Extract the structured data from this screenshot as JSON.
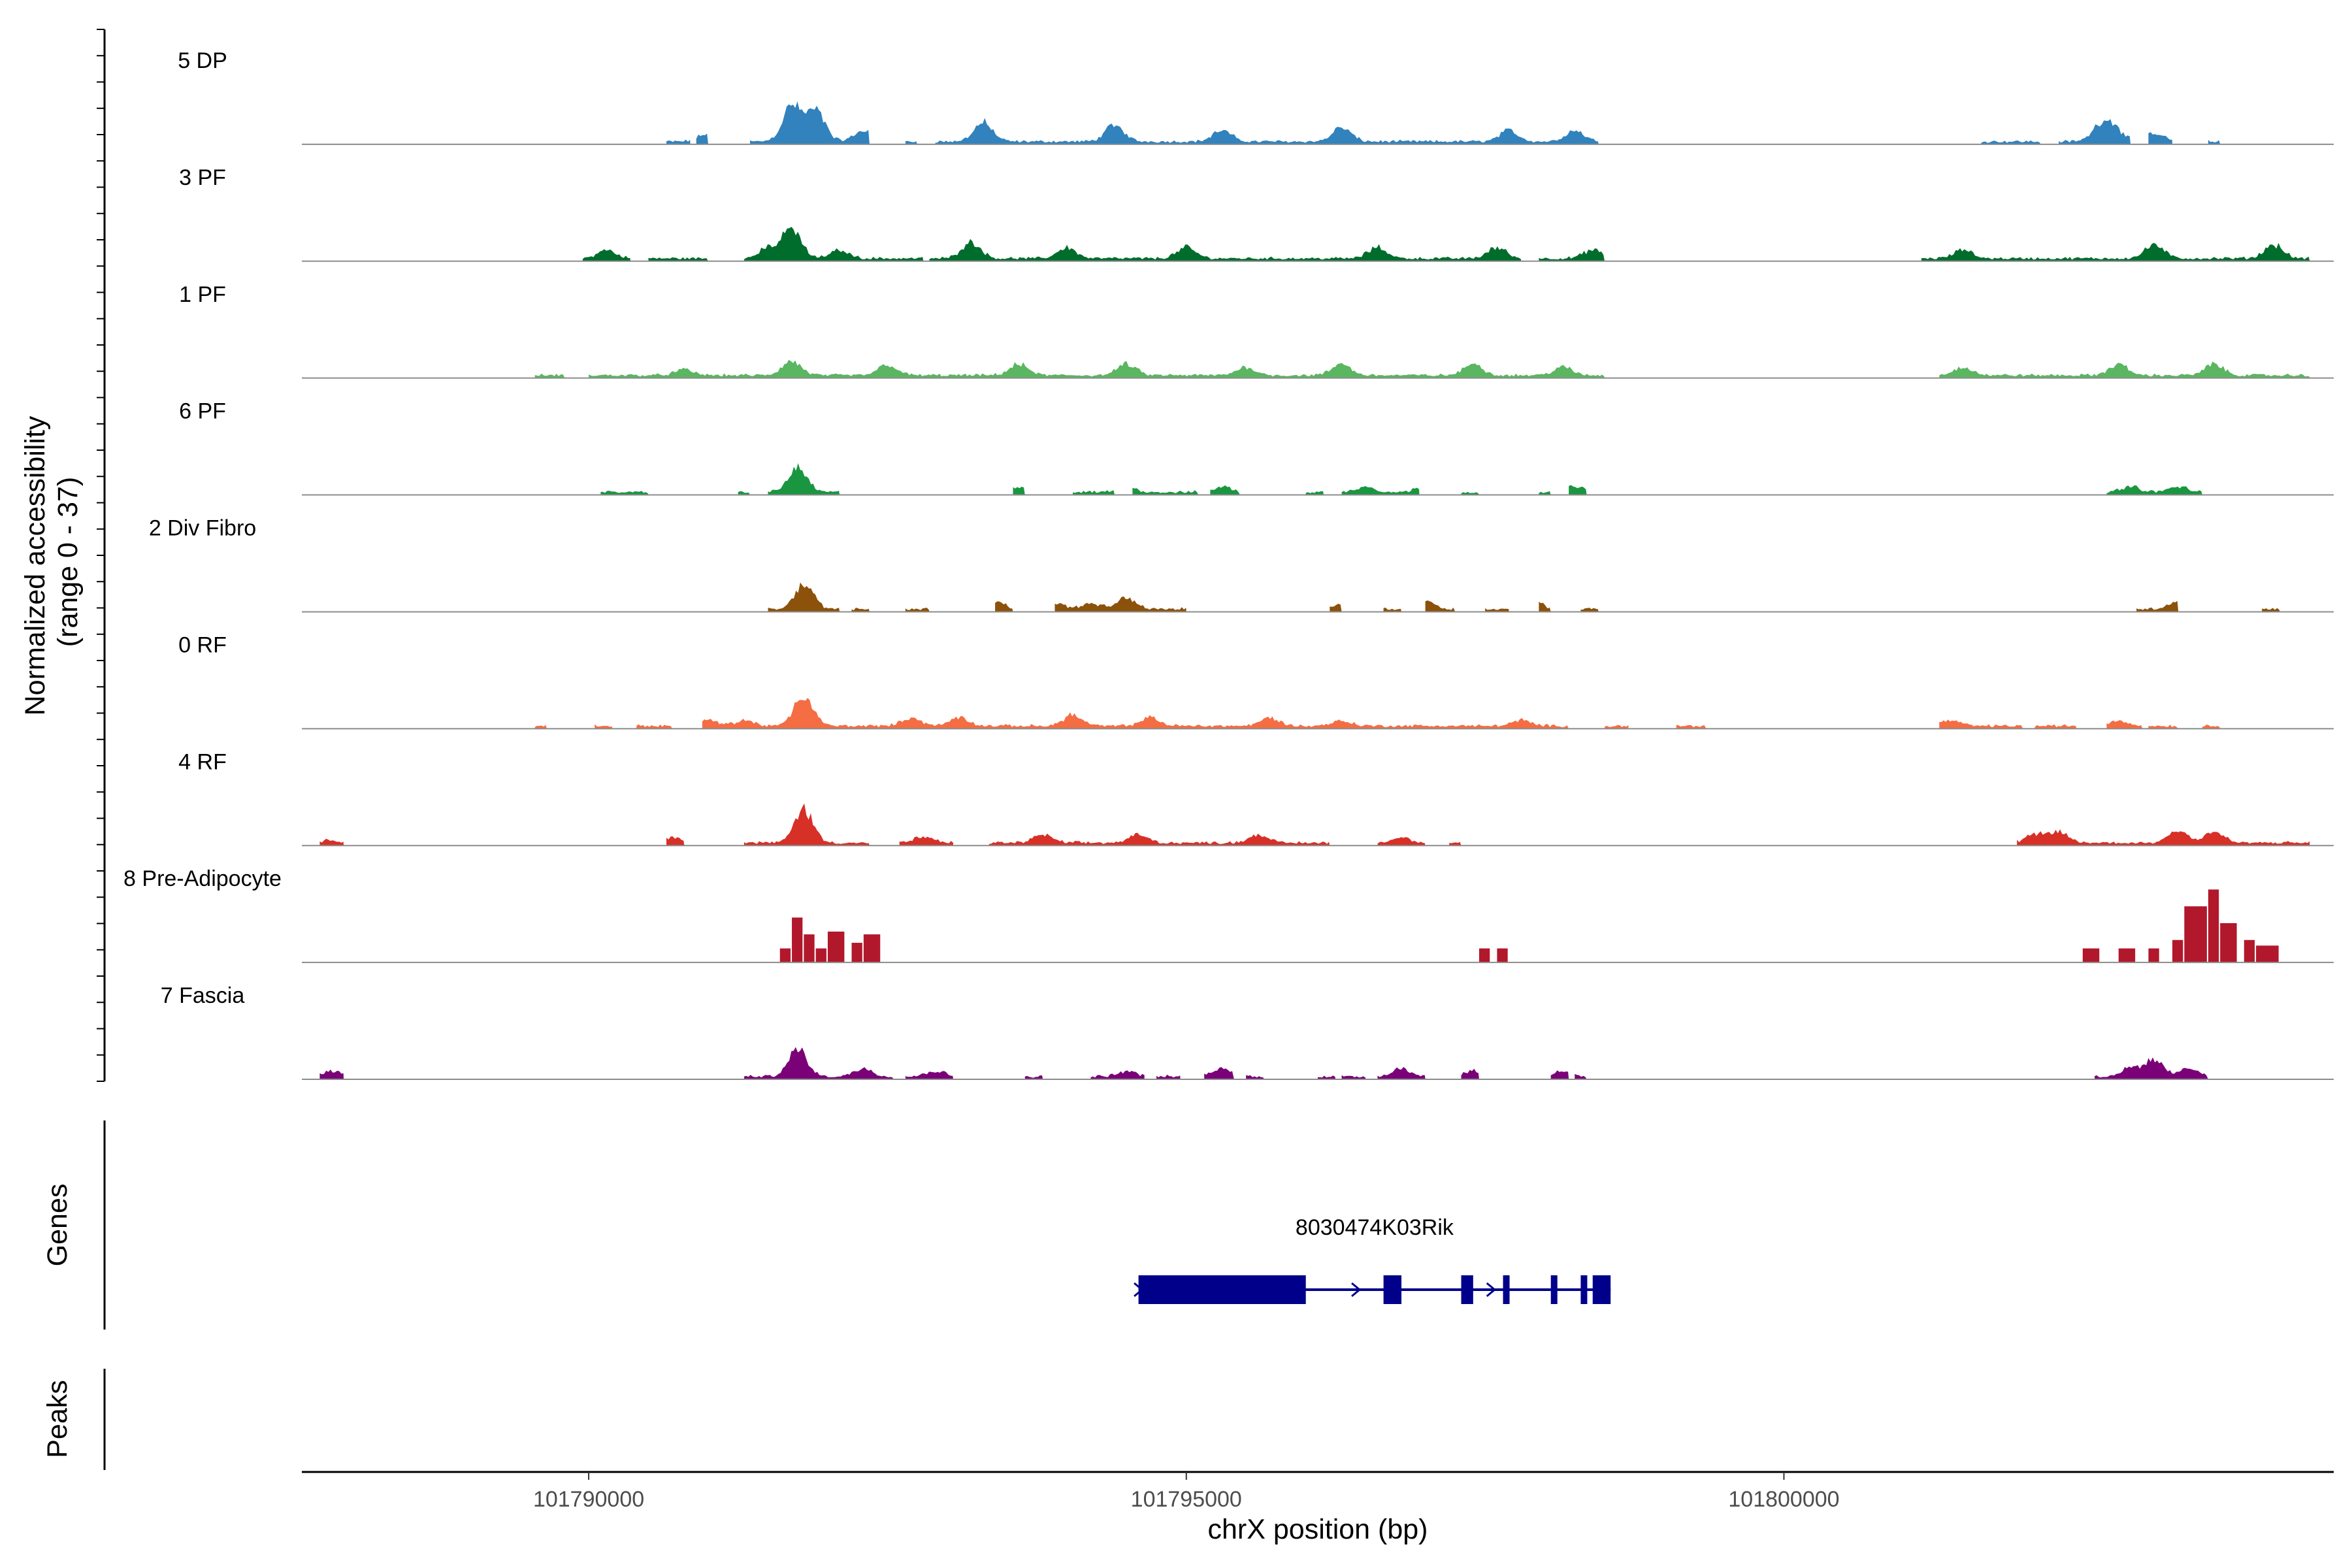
{
  "chart_data": {
    "type": "area",
    "title": "",
    "xlabel": "chrX position (bp)",
    "ylabel": "Normalized accessibility\n(range 0 - 37)",
    "xlim": [
      101787600,
      101804600
    ],
    "ylim": [
      0,
      37
    ],
    "x_ticks": [
      101790000,
      101795000,
      101800000
    ],
    "x_tick_labels": [
      "101790000",
      "101795000",
      "101800000"
    ],
    "track_labels": {
      "genes": "Genes",
      "peaks": "Peaks"
    },
    "series": [
      {
        "name": "5 DP",
        "color": "#3182bd",
        "segments": [
          [
            101790650,
            101790850
          ],
          [
            101790900,
            101791000
          ],
          [
            101791350,
            101792350
          ],
          [
            101792650,
            101792750
          ],
          [
            101792900,
            101798450
          ],
          [
            101801650,
            101802150
          ],
          [
            101802300,
            101802900
          ],
          [
            101803050,
            101803250
          ],
          [
            101803550,
            101803650
          ]
        ],
        "peaks": [
          [
            101791000,
            3
          ],
          [
            101791700,
            13
          ],
          [
            101791900,
            11
          ],
          [
            101792300,
            4
          ],
          [
            101793300,
            7
          ],
          [
            101794400,
            6
          ],
          [
            101795300,
            4
          ],
          [
            101796300,
            5
          ],
          [
            101797700,
            4
          ],
          [
            101798250,
            4
          ],
          [
            101802650,
            5
          ],
          [
            101802750,
            5
          ],
          [
            101803100,
            3
          ]
        ]
      },
      {
        "name": "3 PF",
        "color": "#006d2c",
        "segments": [
          [
            101789950,
            101790350
          ],
          [
            101790500,
            101791000
          ],
          [
            101791300,
            101792800
          ],
          [
            101792850,
            101797800
          ],
          [
            101797950,
            101798500
          ],
          [
            101801150,
            101804400
          ]
        ],
        "peaks": [
          [
            101790150,
            3
          ],
          [
            101791500,
            4
          ],
          [
            101791700,
            11
          ],
          [
            101792100,
            3
          ],
          [
            101793200,
            6
          ],
          [
            101794000,
            4
          ],
          [
            101795000,
            4
          ],
          [
            101796600,
            4
          ],
          [
            101797600,
            4
          ],
          [
            101798400,
            3
          ],
          [
            101801500,
            3
          ],
          [
            101803100,
            5
          ],
          [
            101804100,
            5
          ]
        ]
      },
      {
        "name": "1 PF",
        "color": "#5ab660",
        "segments": [
          [
            101789550,
            101789800
          ],
          [
            101790000,
            101798500
          ],
          [
            101801300,
            101804400
          ]
        ],
        "peaks": [
          [
            101790800,
            2
          ],
          [
            101791700,
            5
          ],
          [
            101792500,
            4
          ],
          [
            101793600,
            4
          ],
          [
            101794500,
            4
          ],
          [
            101795500,
            3
          ],
          [
            101796300,
            4
          ],
          [
            101797400,
            4
          ],
          [
            101798150,
            3
          ],
          [
            101801500,
            3
          ],
          [
            101802800,
            4
          ],
          [
            101803600,
            4
          ]
        ]
      },
      {
        "name": "6 PF",
        "color": "#1a9641",
        "segments": [
          [
            101790100,
            101790500
          ],
          [
            101791250,
            101791350
          ],
          [
            101791500,
            101792100
          ],
          [
            101793550,
            101793650
          ],
          [
            101794050,
            101794400
          ],
          [
            101794550,
            101795100
          ],
          [
            101795200,
            101795450
          ],
          [
            101796000,
            101796150
          ],
          [
            101796300,
            101796950
          ],
          [
            101797300,
            101797450
          ],
          [
            101797950,
            101798050
          ],
          [
            101798200,
            101798350
          ],
          [
            101802700,
            101803500
          ]
        ],
        "peaks": [
          [
            101791750,
            9
          ],
          [
            101793600,
            2
          ],
          [
            101794500,
            2
          ],
          [
            101795300,
            2
          ],
          [
            101796500,
            2
          ],
          [
            101797000,
            2
          ],
          [
            101798250,
            2
          ],
          [
            101802900,
            2
          ],
          [
            101803300,
            2
          ]
        ]
      },
      {
        "name": "2 Div Fibro",
        "color": "#8c510a",
        "segments": [
          [
            101791500,
            101792100
          ],
          [
            101792200,
            101792350
          ],
          [
            101792650,
            101792850
          ],
          [
            101793400,
            101793550
          ],
          [
            101793900,
            101795000
          ],
          [
            101796200,
            101796300
          ],
          [
            101796650,
            101796800
          ],
          [
            101797000,
            101797250
          ],
          [
            101797500,
            101797700
          ],
          [
            101797950,
            101798050
          ],
          [
            101798300,
            101798450
          ],
          [
            101802950,
            101803300
          ],
          [
            101804000,
            101804150
          ]
        ],
        "peaks": [
          [
            101791800,
            9
          ],
          [
            101793400,
            3
          ],
          [
            101793900,
            2
          ],
          [
            101794200,
            2
          ],
          [
            101794500,
            4
          ],
          [
            101796300,
            2
          ],
          [
            101797000,
            3
          ],
          [
            101797900,
            3
          ],
          [
            101802800,
            2
          ],
          [
            101803300,
            3
          ]
        ]
      },
      {
        "name": "0 RF",
        "color": "#f46d43",
        "segments": [
          [
            101789550,
            101789650
          ],
          [
            101790050,
            101790200
          ],
          [
            101790400,
            101790700
          ],
          [
            101790950,
            101798200
          ],
          [
            101798500,
            101798700
          ],
          [
            101799100,
            101799350
          ],
          [
            101801300,
            101802000
          ],
          [
            101802100,
            101802450
          ],
          [
            101802700,
            101803000
          ],
          [
            101803050,
            101803300
          ],
          [
            101803500,
            101803650
          ]
        ],
        "peaks": [
          [
            101791000,
            2
          ],
          [
            101791300,
            2
          ],
          [
            101791800,
            11
          ],
          [
            101792700,
            3
          ],
          [
            101793100,
            3
          ],
          [
            101794050,
            4
          ],
          [
            101794700,
            3
          ],
          [
            101795700,
            3
          ],
          [
            101796300,
            2
          ],
          [
            101797800,
            2
          ],
          [
            101801400,
            2
          ],
          [
            101802800,
            2
          ]
        ]
      },
      {
        "name": "4 RF",
        "color": "#d73027",
        "segments": [
          [
            101787750,
            101787950
          ],
          [
            101790650,
            101790800
          ],
          [
            101791300,
            101792350
          ],
          [
            101792600,
            101793050
          ],
          [
            101793350,
            101796200
          ],
          [
            101796600,
            101797000
          ],
          [
            101797200,
            101797300
          ],
          [
            101801950,
            101804400
          ]
        ],
        "peaks": [
          [
            101787850,
            1
          ],
          [
            101790700,
            2
          ],
          [
            101791800,
            12
          ],
          [
            101792800,
            2
          ],
          [
            101793800,
            3
          ],
          [
            101794600,
            3
          ],
          [
            101795600,
            3
          ],
          [
            101796800,
            2
          ],
          [
            101802100,
            3
          ],
          [
            101802300,
            4
          ],
          [
            101803300,
            5
          ],
          [
            101803600,
            4
          ]
        ]
      },
      {
        "name": "8 Pre-Adipocyte",
        "color": "#b2182b",
        "bars": [
          [
            101791600,
            101791700,
            5
          ],
          [
            101791700,
            101791800,
            16
          ],
          [
            101791800,
            101791900,
            10
          ],
          [
            101791900,
            101792000,
            5
          ],
          [
            101792000,
            101792150,
            11
          ],
          [
            101792200,
            101792300,
            7
          ],
          [
            101792300,
            101792450,
            10
          ],
          [
            101797450,
            101797550,
            5
          ],
          [
            101797600,
            101797700,
            5
          ],
          [
            101802500,
            101802650,
            5
          ],
          [
            101802800,
            101802950,
            5
          ],
          [
            101803050,
            101803150,
            5
          ],
          [
            101803250,
            101803350,
            8
          ],
          [
            101803350,
            101803550,
            20
          ],
          [
            101803550,
            101803650,
            26
          ],
          [
            101803650,
            101803800,
            14
          ],
          [
            101803850,
            101803950,
            8
          ],
          [
            101803950,
            101804150,
            6
          ]
        ]
      },
      {
        "name": "7 Fascia",
        "color": "#7a0177",
        "segments": [
          [
            101787750,
            101787950
          ],
          [
            101791300,
            101792550
          ],
          [
            101792650,
            101793050
          ],
          [
            101793650,
            101793800
          ],
          [
            101794200,
            101794650
          ],
          [
            101794750,
            101794950
          ],
          [
            101795150,
            101795400
          ],
          [
            101795500,
            101795650
          ],
          [
            101796100,
            101796250
          ],
          [
            101796300,
            101796500
          ],
          [
            101796600,
            101797000
          ],
          [
            101797300,
            101797450
          ],
          [
            101798050,
            101798200
          ],
          [
            101798250,
            101798350
          ],
          [
            101802600,
            101803550
          ]
        ],
        "peaks": [
          [
            101787850,
            2
          ],
          [
            101791750,
            10
          ],
          [
            101792300,
            3
          ],
          [
            101792900,
            2
          ],
          [
            101794500,
            2
          ],
          [
            101795300,
            3
          ],
          [
            101796800,
            3
          ],
          [
            101797400,
            2
          ],
          [
            101798150,
            2
          ],
          [
            101802900,
            3
          ],
          [
            101803100,
            6
          ],
          [
            101803400,
            3
          ]
        ]
      }
    ],
    "genes": [
      {
        "name": "8030474K03Rik",
        "strand": "+",
        "start": 101794600,
        "end": 101798550,
        "exons": [
          [
            101794600,
            101796000
          ],
          [
            101796650,
            101796800
          ],
          [
            101797300,
            101797400
          ],
          [
            101797650,
            101797700
          ],
          [
            101798050,
            101798100
          ],
          [
            101798300,
            101798350
          ],
          [
            101798400,
            101798550
          ]
        ]
      }
    ]
  }
}
